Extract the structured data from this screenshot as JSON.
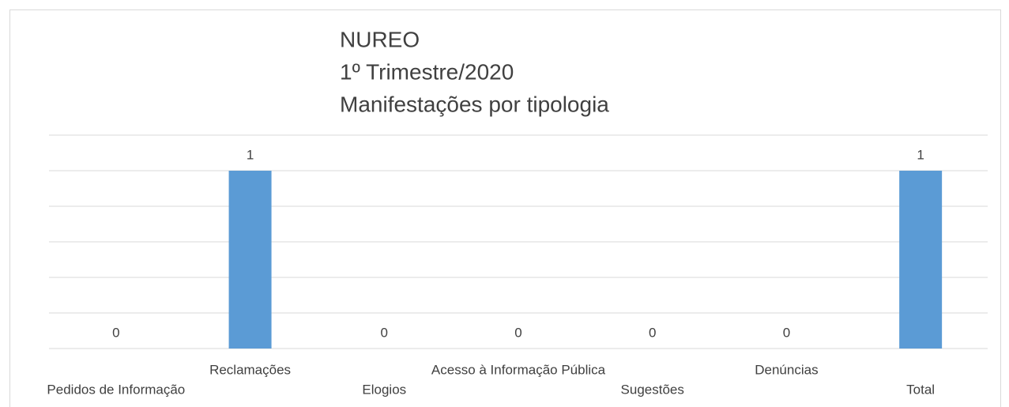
{
  "chart_data": {
    "type": "bar",
    "title": [
      "NUREO",
      "1º Trimestre/2020",
      "Manifestações por tipologia"
    ],
    "categories": [
      "Pedidos de Informação",
      "Reclamações",
      "Elogios",
      "Acesso à Informação Pública",
      "Sugestões",
      "Denúncias",
      "Total"
    ],
    "values": [
      0,
      1,
      0,
      0,
      0,
      0,
      1
    ],
    "color": "#5b9bd5",
    "ylim": [
      0,
      1.2
    ],
    "yticks": [
      0,
      0.2,
      0.4,
      0.6,
      0.8,
      1,
      1.2
    ],
    "grid": true
  }
}
